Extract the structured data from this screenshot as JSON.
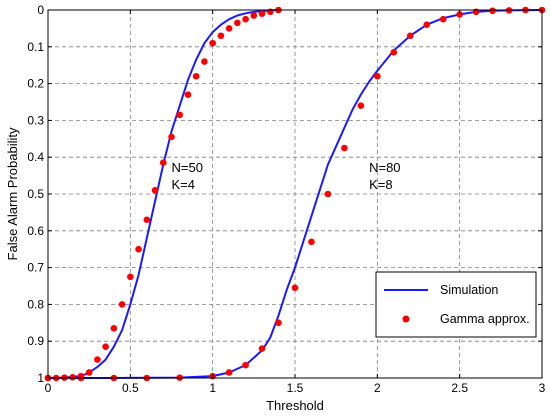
{
  "chart_data": {
    "type": "line",
    "xlabel": "Threshold",
    "ylabel": "False  Alarm  Probability",
    "xlim": [
      0,
      3
    ],
    "ylim": [
      0,
      1
    ],
    "y_axis_inverted": true,
    "grid": true,
    "x_ticks": [
      "0",
      "0.5",
      "1",
      "1.5",
      "2",
      "2.5",
      "3"
    ],
    "y_ticks": [
      "0",
      "0.1",
      "0.2",
      "0.3",
      "0.4",
      "0.5",
      "0.6",
      "0.7",
      "0.8",
      "0.9",
      "1"
    ],
    "legend": {
      "position": "bottom-right",
      "entries": [
        {
          "label": "Simulation",
          "style": "line",
          "color": "#1a1aff"
        },
        {
          "label": "Gamma approx.",
          "style": "marker",
          "color": "#ff0000"
        }
      ]
    },
    "annotations": [
      {
        "lines": [
          "N=50",
          "K=4"
        ],
        "x": 0.75,
        "y": 0.44
      },
      {
        "lines": [
          "N=80",
          "K=8"
        ],
        "x": 1.95,
        "y": 0.44
      }
    ],
    "series": [
      {
        "name": "Simulation",
        "kind": "line",
        "color": "#1a1aff",
        "curves": [
          {
            "x": [
              0,
              0.1,
              0.2,
              0.25,
              0.3,
              0.35,
              0.4,
              0.45,
              0.5,
              0.55,
              0.6,
              0.65,
              0.7,
              0.75,
              0.8,
              0.85,
              0.9,
              0.95,
              1.0,
              1.05,
              1.1,
              1.15,
              1.2,
              1.25,
              1.3,
              1.35,
              1.4
            ],
            "y": [
              1.0,
              0.999,
              0.995,
              0.985,
              0.97,
              0.95,
              0.915,
              0.87,
              0.8,
              0.72,
              0.62,
              0.52,
              0.42,
              0.33,
              0.26,
              0.19,
              0.135,
              0.09,
              0.06,
              0.04,
              0.025,
              0.015,
              0.009,
              0.005,
              0.003,
              0.001,
              0.0
            ]
          },
          {
            "x": [
              0,
              0.4,
              0.8,
              1.0,
              1.1,
              1.2,
              1.3,
              1.35,
              1.4,
              1.45,
              1.5,
              1.55,
              1.6,
              1.65,
              1.7,
              1.75,
              1.8,
              1.85,
              1.9,
              1.95,
              2.0,
              2.1,
              2.2,
              2.3,
              2.4,
              2.5,
              2.6,
              2.7,
              2.8,
              3.0
            ],
            "y": [
              1.0,
              1.0,
              0.999,
              0.995,
              0.985,
              0.965,
              0.925,
              0.89,
              0.83,
              0.76,
              0.7,
              0.63,
              0.56,
              0.49,
              0.42,
              0.37,
              0.32,
              0.27,
              0.23,
              0.195,
              0.165,
              0.11,
              0.07,
              0.04,
              0.022,
              0.012,
              0.005,
              0.002,
              0.001,
              0.0
            ]
          }
        ]
      },
      {
        "name": "Gamma approx.",
        "kind": "scatter",
        "color": "#ff0000",
        "curves": [
          {
            "x": [
              0,
              0.05,
              0.1,
              0.15,
              0.2,
              0.25,
              0.3,
              0.35,
              0.4,
              0.45,
              0.5,
              0.55,
              0.6,
              0.65,
              0.7,
              0.75,
              0.8,
              0.85,
              0.9,
              0.95,
              1.0,
              1.05,
              1.1,
              1.15,
              1.2,
              1.25,
              1.3,
              1.35,
              1.4
            ],
            "y": [
              1.0,
              1.0,
              0.999,
              0.998,
              0.995,
              0.985,
              0.95,
              0.915,
              0.865,
              0.8,
              0.725,
              0.65,
              0.57,
              0.49,
              0.415,
              0.345,
              0.285,
              0.23,
              0.18,
              0.14,
              0.09,
              0.07,
              0.05,
              0.035,
              0.025,
              0.015,
              0.01,
              0.005,
              0.0
            ]
          },
          {
            "x": [
              0,
              0.2,
              0.4,
              0.6,
              0.8,
              1.0,
              1.1,
              1.2,
              1.3,
              1.4,
              1.5,
              1.6,
              1.7,
              1.8,
              1.9,
              2.0,
              2.1,
              2.2,
              2.3,
              2.4,
              2.5,
              2.6,
              2.7,
              2.8,
              2.9,
              3.0
            ],
            "y": [
              1.0,
              1.0,
              1.0,
              1.0,
              0.999,
              0.995,
              0.985,
              0.965,
              0.92,
              0.85,
              0.755,
              0.63,
              0.5,
              0.375,
              0.26,
              0.18,
              0.115,
              0.07,
              0.04,
              0.025,
              0.012,
              0.005,
              0.002,
              0.001,
              0.0,
              0.0
            ]
          }
        ]
      }
    ]
  }
}
